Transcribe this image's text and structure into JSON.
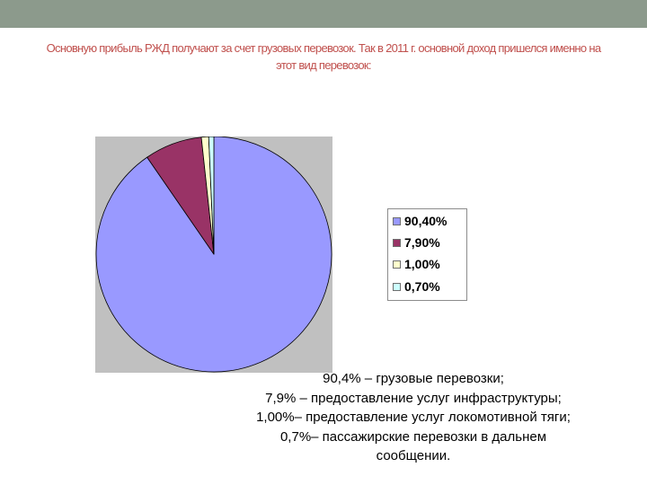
{
  "heading": "Основную прибыль РЖД получают за счет грузовых перевозок. Так в 2011 г. основной доход пришелся именно на этот вид перевозок:",
  "chart_data": {
    "type": "pie",
    "values": [
      90.4,
      7.9,
      1.0,
      0.7
    ],
    "colors": [
      "#9999ff",
      "#993366",
      "#ffffcc",
      "#ccffff"
    ],
    "legend": [
      "90,40%",
      "7,90%",
      "1,00%",
      "0,70%"
    ],
    "legend_position": "right"
  },
  "description_lines": [
    "90,4% – грузовые перевозки;",
    "7,9% – предоставление услуг инфраструктуры;",
    "1,00%– предоставление услуг локомотивной тяги;",
    "0,7%– пассажирские перевозки в дальнем",
    "сообщении."
  ]
}
